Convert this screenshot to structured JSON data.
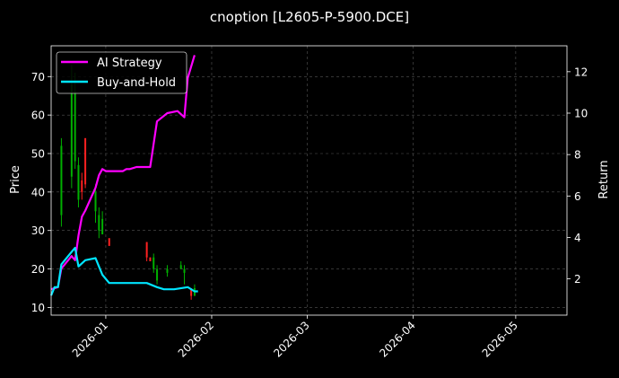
{
  "chart_data": {
    "type": "line",
    "title": "cnoption [L2605-P-5900.DCE]",
    "xlabel": "",
    "ylabel": "Price",
    "ylabel_right": "Return",
    "x_ticks": [
      "2026-01",
      "2026-02",
      "2026-03",
      "2026-04",
      "2026-05"
    ],
    "x_tick_dates": [
      "2026-01-01",
      "2026-02-01",
      "2026-03-01",
      "2026-04-01",
      "2026-05-01"
    ],
    "xlim": [
      "2025-12-16",
      "2026-05-16"
    ],
    "ylim": [
      8,
      78
    ],
    "y_ticks": [
      10,
      20,
      30,
      40,
      50,
      60,
      70
    ],
    "ylim_right": [
      0.25,
      13.25
    ],
    "y_ticks_right": [
      2,
      4,
      6,
      8,
      10,
      12
    ],
    "grid": true,
    "legend_position": "top-left",
    "colors": {
      "background": "#000000",
      "up": "#00b000",
      "down": "#ff2020",
      "ai_strategy": "#ff00ff",
      "buy_and_hold": "#00e5ff",
      "grid": "#555555"
    },
    "candles": [
      {
        "date": "2025-12-19",
        "open": 34,
        "high": 54,
        "low": 31,
        "close": 52
      },
      {
        "date": "2025-12-22",
        "open": 44,
        "high": 73,
        "low": 41,
        "close": 68
      },
      {
        "date": "2025-12-23",
        "open": 48,
        "high": 71,
        "low": 46,
        "close": 66
      },
      {
        "date": "2025-12-24",
        "open": 38,
        "high": 49,
        "low": 36,
        "close": 47
      },
      {
        "date": "2025-12-25",
        "open": 43,
        "high": 45,
        "low": 38,
        "close": 40
      },
      {
        "date": "2025-12-26",
        "open": 54,
        "high": 54,
        "low": 41,
        "close": 42
      },
      {
        "date": "2025-12-29",
        "open": 35,
        "high": 42,
        "low": 32,
        "close": 40
      },
      {
        "date": "2025-12-30",
        "open": 30,
        "high": 36,
        "low": 28,
        "close": 34
      },
      {
        "date": "2025-12-31",
        "open": 29,
        "high": 35,
        "low": 29,
        "close": 33
      },
      {
        "date": "2026-01-02",
        "open": 28,
        "high": 28,
        "low": 26,
        "close": 26
      },
      {
        "date": "2026-01-13",
        "open": 27,
        "high": 27,
        "low": 22,
        "close": 23
      },
      {
        "date": "2026-01-14",
        "open": 23,
        "high": 23,
        "low": 22,
        "close": 22
      },
      {
        "date": "2026-01-15",
        "open": 20,
        "high": 24,
        "low": 19,
        "close": 23
      },
      {
        "date": "2026-01-16",
        "open": 17,
        "high": 21,
        "low": 16,
        "close": 20
      },
      {
        "date": "2026-01-19",
        "open": 19,
        "high": 21,
        "low": 18,
        "close": 20
      },
      {
        "date": "2026-01-23",
        "open": 20,
        "high": 22,
        "low": 20,
        "close": 21
      },
      {
        "date": "2026-01-24",
        "open": 19,
        "high": 21,
        "low": 16,
        "close": 20
      },
      {
        "date": "2026-01-26",
        "open": 15,
        "high": 15,
        "low": 12,
        "close": 13
      },
      {
        "date": "2026-01-27",
        "open": 13,
        "high": 16,
        "low": 13,
        "close": 15
      }
    ],
    "series": [
      {
        "name": "AI Strategy",
        "axis": "right",
        "x": [
          "2025-12-16",
          "2025-12-18",
          "2025-12-19",
          "2025-12-22",
          "2025-12-23",
          "2025-12-24",
          "2025-12-25",
          "2025-12-26",
          "2025-12-29",
          "2025-12-30",
          "2025-12-31",
          "2026-01-01",
          "2026-01-02",
          "2026-01-06",
          "2026-01-07",
          "2026-01-08",
          "2026-01-10",
          "2026-01-12",
          "2026-01-14",
          "2026-01-16",
          "2026-01-19",
          "2026-01-22",
          "2026-01-24",
          "2026-01-25",
          "2026-01-27"
        ],
        "values": [
          1.5,
          1.6,
          2.5,
          3.1,
          2.9,
          4.1,
          5.0,
          5.3,
          6.4,
          7.0,
          7.3,
          7.2,
          7.2,
          7.2,
          7.3,
          7.3,
          7.4,
          7.4,
          7.4,
          9.6,
          10.0,
          10.1,
          9.8,
          11.7,
          12.8
        ]
      },
      {
        "name": "Buy-and-Hold",
        "axis": "right",
        "x": [
          "2025-12-16",
          "2025-12-17",
          "2025-12-18",
          "2025-12-19",
          "2025-12-22",
          "2025-12-23",
          "2025-12-24",
          "2025-12-26",
          "2025-12-29",
          "2025-12-30",
          "2025-12-31",
          "2026-01-02",
          "2026-01-05",
          "2026-01-09",
          "2026-01-13",
          "2026-01-16",
          "2026-01-18",
          "2026-01-21",
          "2026-01-25",
          "2026-01-27",
          "2026-01-28"
        ],
        "values": [
          1.2,
          1.6,
          1.6,
          2.7,
          3.3,
          3.5,
          2.6,
          2.9,
          3.0,
          2.6,
          2.2,
          1.8,
          1.8,
          1.8,
          1.8,
          1.6,
          1.5,
          1.5,
          1.6,
          1.4,
          1.4
        ]
      }
    ]
  }
}
